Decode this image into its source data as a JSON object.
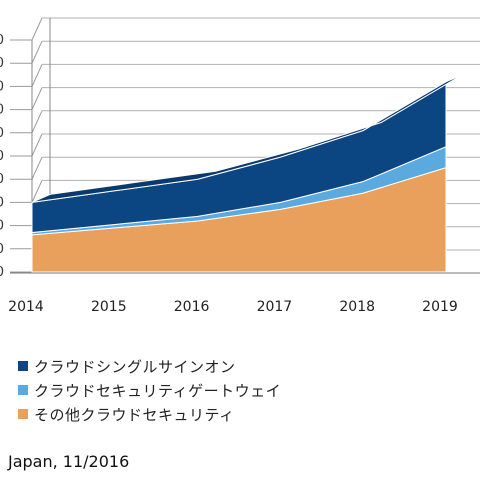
{
  "chart_data": {
    "type": "area",
    "x": [
      "2014",
      "2015",
      "2016",
      "2017",
      "2018",
      "2019"
    ],
    "series": [
      {
        "name": "その他クラウドセキュリティ",
        "color": "#e8a05c",
        "values": [
          1.6,
          1.9,
          2.2,
          2.7,
          3.4,
          4.5
        ]
      },
      {
        "name": "クラウドセキュリティゲートウェイ",
        "color": "#5aaae0",
        "values": [
          0.1,
          0.15,
          0.2,
          0.3,
          0.5,
          0.9
        ]
      },
      {
        "name": "クラウドシングルサインオン",
        "color": "#0c4682",
        "values": [
          1.3,
          1.45,
          1.6,
          1.95,
          2.2,
          2.8
        ]
      }
    ],
    "stacked": true,
    "ylim": [
      0,
      10
    ],
    "grid": true,
    "legend": "bottom-left"
  },
  "legend_items": [
    {
      "label": "クラウドシングルサインオン",
      "color": "#0c4682"
    },
    {
      "label": "クラウドセキュリティゲートウェイ",
      "color": "#5aaae0"
    },
    {
      "label": "その他クラウドセキュリティ",
      "color": "#e8a05c"
    }
  ],
  "source_text": "Japan, 11/2016"
}
